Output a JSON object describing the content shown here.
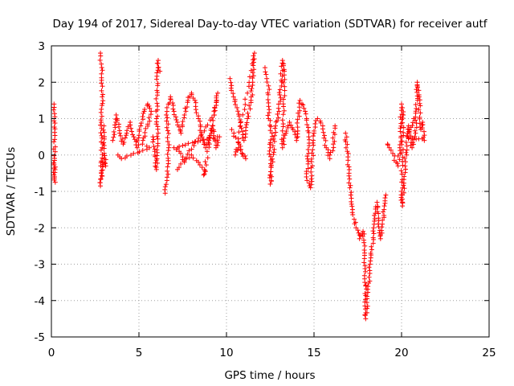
{
  "chart_data": {
    "type": "scatter",
    "title": "Day 194 of 2017, Sidereal Day-to-day VTEC variation (SDTVAR) for receiver autf",
    "xlabel": "GPS time / hours",
    "ylabel": "SDTVAR / TECUs",
    "xlim": [
      0,
      25
    ],
    "ylim": [
      -5,
      3
    ],
    "xticks": [
      "0",
      "5",
      "10",
      "15",
      "20",
      "25"
    ],
    "yticks": [
      "-5",
      "-4",
      "-3",
      "-2",
      "-1",
      "0",
      "1",
      "2",
      "3"
    ],
    "grid": true,
    "marker": "plus",
    "color": "#ff0000",
    "series_segments": [
      {
        "name": "seg-a",
        "values": [
          [
            0.15,
            1.4
          ],
          [
            0.2,
            1.05
          ],
          [
            0.15,
            -0.55
          ],
          [
            0.22,
            -0.75
          ],
          [
            0.18,
            -0.15
          ]
        ]
      },
      {
        "name": "seg-b",
        "values": [
          [
            2.8,
            2.8
          ],
          [
            2.85,
            2.5
          ],
          [
            2.9,
            1.6
          ],
          [
            2.85,
            0.9
          ],
          [
            2.9,
            0.2
          ],
          [
            2.85,
            -0.5
          ],
          [
            2.8,
            -0.85
          ],
          [
            3.0,
            -0.1
          ],
          [
            3.1,
            -0.3
          ],
          [
            3.0,
            0.8
          ]
        ]
      },
      {
        "name": "seg-c",
        "values": [
          [
            3.5,
            0.4
          ],
          [
            3.7,
            1.1
          ],
          [
            3.9,
            0.6
          ],
          [
            4.1,
            0.3
          ],
          [
            4.3,
            0.6
          ],
          [
            4.5,
            0.9
          ],
          [
            4.7,
            0.5
          ],
          [
            4.9,
            0.2
          ],
          [
            5.1,
            0.8
          ],
          [
            5.3,
            1.2
          ],
          [
            5.5,
            1.4
          ],
          [
            5.7,
            1.2
          ],
          [
            5.2,
            0.3
          ],
          [
            5.6,
            0.2
          ],
          [
            4.0,
            -0.1
          ],
          [
            3.8,
            0.0
          ]
        ]
      },
      {
        "name": "seg-d",
        "values": [
          [
            5.8,
            0.5
          ],
          [
            5.9,
            0.1
          ],
          [
            6.0,
            -0.4
          ],
          [
            6.1,
            0.6
          ],
          [
            6.0,
            1.0
          ],
          [
            6.1,
            2.6
          ],
          [
            6.2,
            2.3
          ]
        ]
      },
      {
        "name": "seg-e",
        "values": [
          [
            6.5,
            -1.05
          ],
          [
            6.6,
            -0.7
          ],
          [
            6.7,
            0.2
          ],
          [
            6.6,
            1.3
          ],
          [
            6.8,
            1.6
          ],
          [
            7.0,
            1.2
          ],
          [
            7.2,
            0.9
          ],
          [
            7.4,
            0.6
          ],
          [
            7.6,
            1.1
          ],
          [
            7.8,
            1.5
          ],
          [
            8.0,
            1.7
          ],
          [
            8.2,
            1.5
          ],
          [
            8.4,
            1.0
          ],
          [
            8.6,
            0.5
          ],
          [
            8.8,
            0.2
          ],
          [
            9.0,
            0.4
          ],
          [
            9.2,
            0.8
          ],
          [
            9.4,
            0.2
          ],
          [
            9.6,
            0.5
          ],
          [
            7.0,
            0.2
          ],
          [
            7.3,
            0.1
          ],
          [
            7.6,
            -0.2
          ],
          [
            8.0,
            0.0
          ],
          [
            8.4,
            -0.2
          ],
          [
            8.8,
            -0.45
          ],
          [
            8.7,
            -0.55
          ],
          [
            9.5,
            1.7
          ],
          [
            9.3,
            1.1
          ],
          [
            7.2,
            -0.4
          ]
        ]
      },
      {
        "name": "seg-f",
        "values": [
          [
            10.2,
            2.1
          ],
          [
            10.4,
            1.6
          ],
          [
            10.6,
            1.3
          ],
          [
            10.8,
            0.8
          ],
          [
            11.0,
            0.4
          ],
          [
            11.2,
            1.0
          ],
          [
            11.4,
            1.5
          ],
          [
            11.5,
            2.0
          ],
          [
            11.6,
            2.8
          ],
          [
            10.5,
            0.0
          ],
          [
            10.7,
            0.2
          ],
          [
            11.1,
            -0.1
          ],
          [
            10.3,
            0.7
          ]
        ]
      },
      {
        "name": "seg-g",
        "values": [
          [
            12.2,
            2.4
          ],
          [
            12.3,
            2.1
          ],
          [
            12.4,
            1.9
          ],
          [
            12.4,
            1.0
          ],
          [
            12.6,
            0.6
          ],
          [
            12.5,
            0.2
          ],
          [
            12.5,
            -0.8
          ],
          [
            12.8,
            0.8
          ],
          [
            13.0,
            1.2
          ],
          [
            13.2,
            2.6
          ],
          [
            13.3,
            2.2
          ],
          [
            13.2,
            0.2
          ],
          [
            13.4,
            0.6
          ],
          [
            13.6,
            0.9
          ],
          [
            13.8,
            0.7
          ],
          [
            14.0,
            0.4
          ],
          [
            14.2,
            1.5
          ],
          [
            14.5,
            1.2
          ],
          [
            14.7,
            0.5
          ],
          [
            14.6,
            -0.7
          ],
          [
            14.8,
            -0.9
          ],
          [
            15.0,
            0.6
          ],
          [
            15.2,
            1.0
          ],
          [
            15.5,
            0.8
          ],
          [
            15.7,
            0.2
          ],
          [
            15.9,
            -0.1
          ],
          [
            16.1,
            0.3
          ],
          [
            16.2,
            0.8
          ]
        ]
      },
      {
        "name": "seg-h",
        "values": [
          [
            16.8,
            0.6
          ],
          [
            16.9,
            0.1
          ],
          [
            17.0,
            -0.5
          ],
          [
            17.1,
            -1.1
          ],
          [
            17.2,
            -1.5
          ],
          [
            17.4,
            -2.0
          ],
          [
            17.6,
            -2.3
          ],
          [
            17.8,
            -2.1
          ],
          [
            17.9,
            -2.5
          ],
          [
            17.9,
            -3.5
          ],
          [
            17.95,
            -3.6
          ],
          [
            17.95,
            -4.5
          ],
          [
            18.2,
            -3.0
          ],
          [
            18.3,
            -2.6
          ],
          [
            18.4,
            -2.0
          ],
          [
            18.5,
            -1.6
          ],
          [
            18.6,
            -1.3
          ],
          [
            18.7,
            -1.8
          ],
          [
            18.8,
            -2.3
          ],
          [
            18.9,
            -1.9
          ],
          [
            19.0,
            -1.5
          ],
          [
            19.1,
            -1.1
          ]
        ]
      },
      {
        "name": "seg-i",
        "values": [
          [
            19.2,
            0.3
          ],
          [
            19.3,
            0.2
          ],
          [
            19.8,
            -0.3
          ],
          [
            19.9,
            0.2
          ],
          [
            20.0,
            1.4
          ],
          [
            20.1,
            1.1
          ],
          [
            20.0,
            -1.0
          ],
          [
            20.05,
            -1.4
          ],
          [
            20.2,
            -0.3
          ],
          [
            20.4,
            0.8
          ],
          [
            20.6,
            0.2
          ],
          [
            20.8,
            0.6
          ],
          [
            20.9,
            2.0
          ],
          [
            21.0,
            1.6
          ],
          [
            21.1,
            0.7
          ],
          [
            21.2,
            0.9
          ],
          [
            21.3,
            0.4
          ],
          [
            20.3,
            0.5
          ],
          [
            20.7,
            1.0
          ]
        ]
      }
    ]
  }
}
